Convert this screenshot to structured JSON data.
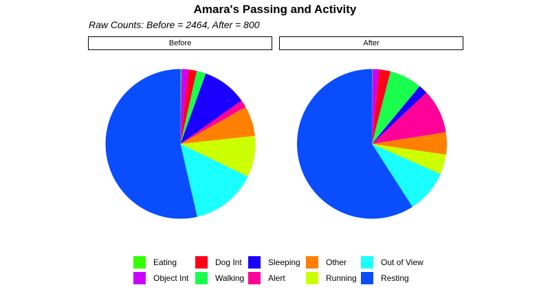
{
  "chart_data": {
    "type": "pie",
    "title": "Amara's Passing and Activity",
    "subtitle": "Raw Counts: Before = 2464, After = 800",
    "facets": [
      {
        "label": "Before",
        "values": [
          {
            "category": "Eating",
            "value": 0.2
          },
          {
            "category": "Object Int",
            "value": 1.5
          },
          {
            "category": "Dog Int",
            "value": 1.8
          },
          {
            "category": "Walking",
            "value": 2.0
          },
          {
            "category": "Sleeping",
            "value": 9.7
          },
          {
            "category": "Alert",
            "value": 1.6
          },
          {
            "category": "Other",
            "value": 6.5
          },
          {
            "category": "Running",
            "value": 8.9
          },
          {
            "category": "Out of View",
            "value": 14.2
          },
          {
            "category": "Resting",
            "value": 53.6
          }
        ]
      },
      {
        "label": "After",
        "values": [
          {
            "category": "Eating",
            "value": 0.1
          },
          {
            "category": "Object Int",
            "value": 1.4
          },
          {
            "category": "Dog Int",
            "value": 2.5
          },
          {
            "category": "Walking",
            "value": 7.0
          },
          {
            "category": "Sleeping",
            "value": 2.0
          },
          {
            "category": "Alert",
            "value": 9.5
          },
          {
            "category": "Other",
            "value": 4.8
          },
          {
            "category": "Running",
            "value": 4.3
          },
          {
            "category": "Out of View",
            "value": 9.3
          },
          {
            "category": "Resting",
            "value": 59.1
          }
        ]
      }
    ],
    "legend": {
      "position": "bottom",
      "items": [
        {
          "label": "Eating",
          "color": "#33ff00"
        },
        {
          "label": "Dog Int",
          "color": "#ff0019"
        },
        {
          "label": "Sleeping",
          "color": "#1a00ff"
        },
        {
          "label": "Other",
          "color": "#ff8000"
        },
        {
          "label": "Out of View",
          "color": "#1affff"
        },
        {
          "label": "Object Int",
          "color": "#cc00ff"
        },
        {
          "label": "Walking",
          "color": "#1aff4d"
        },
        {
          "label": "Alert",
          "color": "#ff0099"
        },
        {
          "label": "Running",
          "color": "#ccff00"
        },
        {
          "label": "Resting",
          "color": "#0a4dff"
        }
      ]
    }
  }
}
